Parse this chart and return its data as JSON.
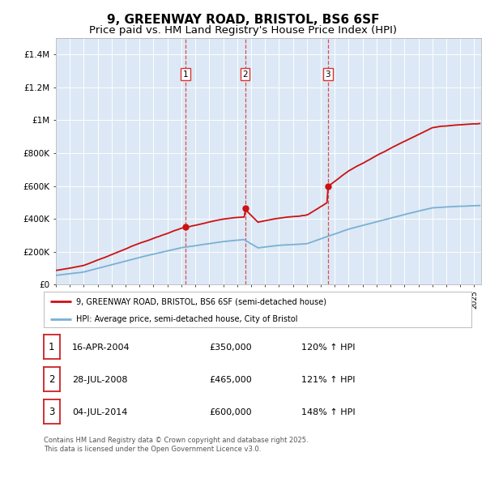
{
  "title": "9, GREENWAY ROAD, BRISTOL, BS6 6SF",
  "subtitle": "Price paid vs. HM Land Registry's House Price Index (HPI)",
  "title_fontsize": 11,
  "subtitle_fontsize": 9.5,
  "sale_dates": [
    2004.29,
    2008.57,
    2014.5
  ],
  "sale_prices": [
    350000,
    465000,
    600000
  ],
  "sale_labels": [
    "1",
    "2",
    "3"
  ],
  "vline_color": "#dd3333",
  "hpi_color": "#7ab0d4",
  "house_color": "#cc1111",
  "legend_house_label": "9, GREENWAY ROAD, BRISTOL, BS6 6SF (semi-detached house)",
  "legend_hpi_label": "HPI: Average price, semi-detached house, City of Bristol",
  "table_entries": [
    {
      "label": "1",
      "date": "16-APR-2004",
      "price": "£350,000",
      "pct": "120% ↑ HPI"
    },
    {
      "label": "2",
      "date": "28-JUL-2008",
      "price": "£465,000",
      "pct": "121% ↑ HPI"
    },
    {
      "label": "3",
      "date": "04-JUL-2014",
      "price": "£600,000",
      "pct": "148% ↑ HPI"
    }
  ],
  "footnote": "Contains HM Land Registry data © Crown copyright and database right 2025.\nThis data is licensed under the Open Government Licence v3.0.",
  "ylim": [
    0,
    1500000
  ],
  "yticks": [
    0,
    200000,
    400000,
    600000,
    800000,
    1000000,
    1200000,
    1400000
  ],
  "ytick_labels": [
    "£0",
    "£200K",
    "£400K",
    "£600K",
    "£800K",
    "£1M",
    "£1.2M",
    "£1.4M"
  ],
  "plot_bg_color": "#dce8f5",
  "fig_bg_color": "#ffffff",
  "xlim_start": 1995.0,
  "xlim_end": 2025.5
}
